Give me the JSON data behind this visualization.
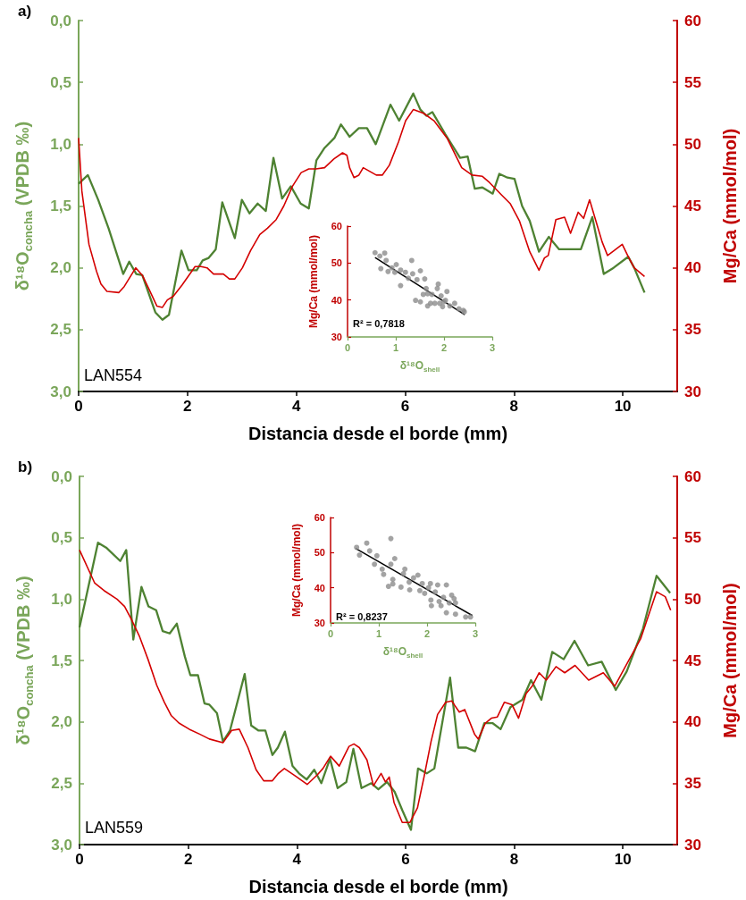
{
  "chart_data": [
    {
      "type": "line",
      "annotations": [
        "a)",
        "LAN554"
      ],
      "xlabel": "Distancia desde el borde (mm)",
      "ylabel": "δ¹⁸O$_{concha}$ (VPDB ‰)",
      "y2label": "Mg/Ca (mmol/mol)",
      "xlim": [
        0,
        11
      ],
      "xticks": [
        0,
        2,
        4,
        6,
        8,
        10
      ],
      "ylim": [
        3,
        0
      ],
      "yticks": [
        {
          "value": 0,
          "label": "0,0"
        },
        {
          "value": 0.5,
          "label": "0,5"
        },
        {
          "value": 1,
          "label": "1,0"
        },
        {
          "value": 1.5,
          "label": "1,5"
        },
        {
          "value": 2,
          "label": "2,0"
        },
        {
          "value": 2.5,
          "label": "2,5"
        },
        {
          "value": 3,
          "label": "3,0"
        }
      ],
      "y2lim": [
        30,
        60
      ],
      "y2ticks": [
        30,
        35,
        40,
        45,
        50,
        55,
        60
      ],
      "marker": "none",
      "series": [
        {
          "color": "#4e8232",
          "x": [
            0,
            0.17,
            0.36,
            0.55,
            0.82,
            0.93,
            1.06,
            1.17,
            1.41,
            1.54,
            1.66,
            1.89,
            2.02,
            2.17,
            2.28,
            2.39,
            2.52,
            2.64,
            2.87,
            3.0,
            3.14,
            3.29,
            3.44,
            3.58,
            3.74,
            3.9,
            4.08,
            4.23,
            4.37,
            4.52,
            4.7,
            4.82,
            4.98,
            5.15,
            5.3,
            5.46,
            5.73,
            5.89,
            6.15,
            6.28,
            6.39,
            6.5,
            6.74,
            7.01,
            7.15,
            7.28,
            7.42,
            7.61,
            7.73,
            7.88,
            8.01,
            8.15,
            8.29,
            8.46,
            8.64,
            8.83,
            9.07,
            9.23,
            9.44,
            9.65,
            9.83,
            10.1,
            10.21,
            10.4
          ],
          "values": [
            1.32,
            1.25,
            1.45,
            1.68,
            2.05,
            1.95,
            2.05,
            2.06,
            2.36,
            2.42,
            2.38,
            1.86,
            2.02,
            2.02,
            1.94,
            1.92,
            1.85,
            1.47,
            1.76,
            1.45,
            1.56,
            1.48,
            1.54,
            1.11,
            1.44,
            1.34,
            1.48,
            1.52,
            1.13,
            1.03,
            0.95,
            0.84,
            0.94,
            0.87,
            0.87,
            1.0,
            0.68,
            0.81,
            0.59,
            0.72,
            0.77,
            0.74,
            0.92,
            1.11,
            1.1,
            1.36,
            1.35,
            1.4,
            1.24,
            1.27,
            1.28,
            1.5,
            1.62,
            1.87,
            1.75,
            1.85,
            1.85,
            1.85,
            1.59,
            2.05,
            2.0,
            1.91,
            2.0,
            2.2
          ]
        },
        {
          "color": "#d40000",
          "axis": "y2",
          "x": [
            0,
            0.06,
            0.19,
            0.33,
            0.41,
            0.52,
            0.74,
            0.84,
            1.05,
            1.17,
            1.29,
            1.44,
            1.54,
            1.63,
            1.74,
            1.9,
            2.14,
            2.25,
            2.36,
            2.48,
            2.66,
            2.77,
            2.87,
            3.01,
            3.16,
            3.33,
            3.47,
            3.63,
            3.77,
            3.93,
            4.09,
            4.23,
            4.36,
            4.52,
            4.69,
            4.85,
            4.93,
            4.98,
            5.06,
            5.15,
            5.23,
            5.47,
            5.58,
            5.71,
            5.88,
            6.01,
            6.15,
            6.34,
            6.53,
            6.77,
            7.04,
            7.23,
            7.42,
            7.55,
            7.77,
            7.93,
            8.1,
            8.29,
            8.46,
            8.56,
            8.63,
            8.77,
            8.93,
            9.04,
            9.18,
            9.28,
            9.39,
            9.62,
            9.72,
            9.84,
            9.99,
            10.1,
            10.21,
            10.4
          ],
          "values": [
            50.5,
            46.2,
            41.9,
            39.7,
            38.7,
            38.1,
            38.0,
            38.5,
            40.0,
            39.4,
            38.3,
            36.9,
            36.8,
            37.4,
            37.7,
            38.6,
            40.1,
            40.1,
            40.0,
            39.5,
            39.5,
            39.1,
            39.1,
            40.0,
            41.4,
            42.7,
            43.2,
            43.9,
            45.0,
            46.6,
            47.7,
            48.0,
            48.0,
            48.1,
            48.8,
            49.3,
            49.1,
            48.1,
            47.3,
            47.5,
            48.1,
            47.5,
            47.5,
            48.3,
            50.2,
            51.9,
            52.8,
            52.5,
            51.9,
            50.5,
            48.1,
            47.5,
            47.4,
            46.9,
            45.9,
            45.2,
            43.8,
            41.3,
            39.8,
            40.8,
            41.0,
            43.9,
            44.1,
            42.8,
            44.5,
            44.0,
            45.5,
            42.1,
            41.0,
            41.4,
            41.9,
            40.9,
            40.0,
            39.3
          ]
        }
      ]
    },
    {
      "type": "scatter",
      "annotations": [
        "R² = 0,7818"
      ],
      "xlabel": "δ¹⁸O$_{shell}$",
      "ylabel": "Mg/Ca (mmol/mol)",
      "xlim": [
        0,
        3
      ],
      "xticks": [
        0,
        1,
        2,
        3
      ],
      "ylim": [
        30,
        60
      ],
      "yticks": [
        30,
        40,
        50,
        60
      ],
      "marker": "circle",
      "series": [
        {
          "color": "#8c8c8c",
          "x": [
            0.57,
            0.67,
            0.77,
            0.69,
            0.8,
            0.84,
            0.92,
            1.01,
            0.98,
            1.1,
            1.1,
            1.2,
            1.33,
            1.35,
            1.26,
            1.44,
            1.51,
            1.41,
            1.51,
            1.6,
            1.57,
            1.63,
            1.72,
            1.66,
            1.81,
            1.88,
            1.86,
            1.94,
            1.97,
            1.91,
            2.06,
            2.03,
            2.12,
            2.22,
            2.31,
            2.4,
            2.42,
            2.0,
            1.75,
            1.66
          ],
          "values": [
            52.8,
            51.9,
            52.7,
            48.5,
            50.7,
            47.7,
            48.7,
            49.6,
            47.5,
            48.1,
            43.9,
            47.5,
            50.7,
            47.1,
            45.9,
            45.5,
            47.9,
            39.9,
            39.5,
            45.7,
            41.5,
            43.1,
            39.1,
            38.4,
            39.1,
            44.3,
            43.1,
            41.1,
            38.2,
            39.1,
            42.3,
            39.9,
            38.4,
            39.1,
            37.6,
            37.2,
            36.8,
            39.5,
            41.5,
            41.7
          ]
        },
        {
          "type": "line",
          "marker": "none",
          "color": "#000000",
          "x": [
            0.57,
            2.43
          ],
          "values": [
            51.5,
            36.0
          ]
        }
      ]
    },
    {
      "type": "line",
      "annotations": [
        "b)",
        "LAN559"
      ],
      "xlabel": "Distancia desde el borde (mm)",
      "ylabel": "δ¹⁸O$_{concha}$ (VPDB ‰)",
      "y2label": "Mg/Ca (mmol/mol)",
      "xlim": [
        0,
        11
      ],
      "xticks": [
        0,
        2,
        4,
        6,
        8,
        10
      ],
      "ylim": [
        3,
        0
      ],
      "yticks": [
        {
          "value": 0,
          "label": "0,0"
        },
        {
          "value": 0.5,
          "label": "0,5"
        },
        {
          "value": 1,
          "label": "1,0"
        },
        {
          "value": 1.5,
          "label": "1,5"
        },
        {
          "value": 2,
          "label": "2,0"
        },
        {
          "value": 2.5,
          "label": "2,5"
        },
        {
          "value": 3,
          "label": "3,0"
        }
      ],
      "y2lim": [
        30,
        60
      ],
      "y2ticks": [
        30,
        35,
        40,
        45,
        50,
        55,
        60
      ],
      "marker": "none",
      "series": [
        {
          "color": "#4e8232",
          "x": [
            0,
            0.34,
            0.49,
            0.75,
            0.86,
            0.99,
            1.14,
            1.27,
            1.41,
            1.53,
            1.66,
            1.79,
            1.94,
            2.04,
            2.18,
            2.3,
            2.39,
            2.53,
            2.64,
            2.77,
            3.04,
            3.16,
            3.29,
            3.42,
            3.55,
            3.65,
            3.78,
            3.92,
            4.04,
            4.18,
            4.32,
            4.45,
            4.61,
            4.75,
            4.91,
            5.04,
            5.19,
            5.37,
            5.5,
            5.66,
            5.8,
            5.94,
            6.1,
            6.23,
            6.39,
            6.53,
            6.82,
            6.97,
            7.12,
            7.28,
            7.45,
            7.6,
            7.75,
            7.93,
            8.15,
            8.31,
            8.5,
            8.7,
            8.91,
            9.11,
            9.36,
            9.61,
            9.87,
            10.07,
            10.37,
            10.62,
            10.87
          ],
          "values": [
            1.23,
            0.54,
            0.58,
            0.69,
            0.6,
            1.33,
            0.9,
            1.06,
            1.09,
            1.26,
            1.28,
            1.2,
            1.47,
            1.62,
            1.62,
            1.85,
            1.86,
            1.93,
            2.16,
            2.07,
            1.61,
            2.03,
            2.07,
            2.07,
            2.27,
            2.21,
            2.08,
            2.36,
            2.42,
            2.47,
            2.39,
            2.5,
            2.3,
            2.54,
            2.49,
            2.22,
            2.54,
            2.5,
            2.55,
            2.49,
            2.57,
            2.72,
            2.88,
            2.38,
            2.42,
            2.38,
            1.64,
            2.21,
            2.21,
            2.24,
            2.01,
            2.01,
            2.06,
            1.88,
            1.82,
            1.66,
            1.82,
            1.43,
            1.49,
            1.34,
            1.54,
            1.51,
            1.74,
            1.59,
            1.24,
            0.81,
            0.95
          ]
        },
        {
          "color": "#d40000",
          "axis": "y2",
          "x": [
            0,
            0.28,
            0.45,
            0.69,
            0.83,
            0.96,
            1.1,
            1.26,
            1.42,
            1.56,
            1.69,
            1.83,
            2.02,
            2.21,
            2.39,
            2.64,
            2.8,
            2.94,
            3.1,
            3.25,
            3.39,
            3.55,
            3.66,
            3.77,
            3.97,
            4.19,
            4.38,
            4.48,
            4.62,
            4.78,
            4.96,
            5.05,
            5.15,
            5.29,
            5.41,
            5.55,
            5.63,
            5.7,
            5.79,
            5.94,
            6.08,
            6.22,
            6.34,
            6.47,
            6.59,
            6.74,
            6.85,
            6.99,
            7.09,
            7.27,
            7.34,
            7.47,
            7.58,
            7.69,
            7.82,
            7.96,
            8.08,
            8.22,
            8.33,
            8.46,
            8.59,
            8.77,
            8.93,
            9.12,
            9.37,
            9.64,
            9.85,
            10.07,
            10.33,
            10.62,
            10.78,
            10.88
          ],
          "values": [
            54.0,
            51.3,
            50.7,
            50.0,
            49.4,
            48.3,
            47.0,
            45.1,
            43.0,
            41.6,
            40.5,
            39.9,
            39.4,
            39.0,
            38.6,
            38.3,
            39.3,
            39.4,
            37.9,
            36.1,
            35.2,
            35.2,
            35.8,
            36.2,
            35.6,
            34.9,
            35.7,
            36.2,
            37.2,
            36.4,
            38.0,
            38.2,
            37.9,
            36.9,
            34.8,
            35.8,
            35.1,
            35.5,
            33.4,
            31.8,
            31.8,
            33.0,
            35.5,
            38.4,
            40.6,
            41.6,
            41.7,
            40.8,
            41.0,
            39.0,
            38.6,
            39.9,
            40.3,
            40.4,
            41.6,
            41.4,
            40.3,
            42.3,
            42.9,
            44.0,
            43.4,
            44.5,
            44.0,
            44.6,
            43.4,
            44.0,
            42.9,
            44.7,
            46.8,
            50.6,
            50.2,
            49.1
          ]
        }
      ]
    },
    {
      "type": "scatter",
      "annotations": [
        "R² = 0,8237"
      ],
      "xlabel": "δ¹⁸O$_{shell}$",
      "ylabel": "Mg/Ca (mmol/mol)",
      "xlim": [
        0,
        3
      ],
      "xticks": [
        0,
        1,
        2,
        3
      ],
      "ylim": [
        30,
        60
      ],
      "yticks": [
        30,
        40,
        50,
        60
      ],
      "marker": "circle",
      "series": [
        {
          "color": "#8c8c8c",
          "x": [
            0.54,
            0.6,
            0.75,
            0.81,
            0.91,
            0.96,
            1.07,
            1.1,
            1.2,
            1.25,
            1.25,
            1.29,
            1.29,
            1.33,
            1.46,
            1.51,
            1.54,
            1.63,
            1.64,
            1.72,
            1.81,
            1.85,
            1.9,
            1.95,
            2.03,
            2.07,
            2.08,
            2.09,
            2.17,
            2.22,
            2.25,
            2.29,
            2.34,
            2.4,
            2.4,
            2.46,
            2.51,
            2.56,
            2.59,
            2.59,
            2.8,
            2.9
          ],
          "values": [
            51.5,
            49.3,
            52.7,
            50.5,
            46.7,
            49.1,
            45.3,
            43.8,
            40.4,
            54.0,
            46.7,
            42.4,
            41.1,
            48.3,
            40.2,
            44.0,
            45.3,
            41.6,
            39.4,
            42.8,
            43.6,
            39.2,
            41.2,
            38.4,
            40.0,
            41.2,
            36.5,
            34.9,
            38.8,
            40.8,
            36.1,
            34.9,
            37.3,
            40.8,
            32.9,
            35.7,
            37.9,
            36.9,
            35.7,
            32.5,
            31.7,
            31.7
          ]
        },
        {
          "type": "line",
          "marker": "none",
          "color": "#000000",
          "x": [
            0.52,
            2.94
          ],
          "values": [
            51.2,
            32.1
          ]
        }
      ]
    }
  ]
}
